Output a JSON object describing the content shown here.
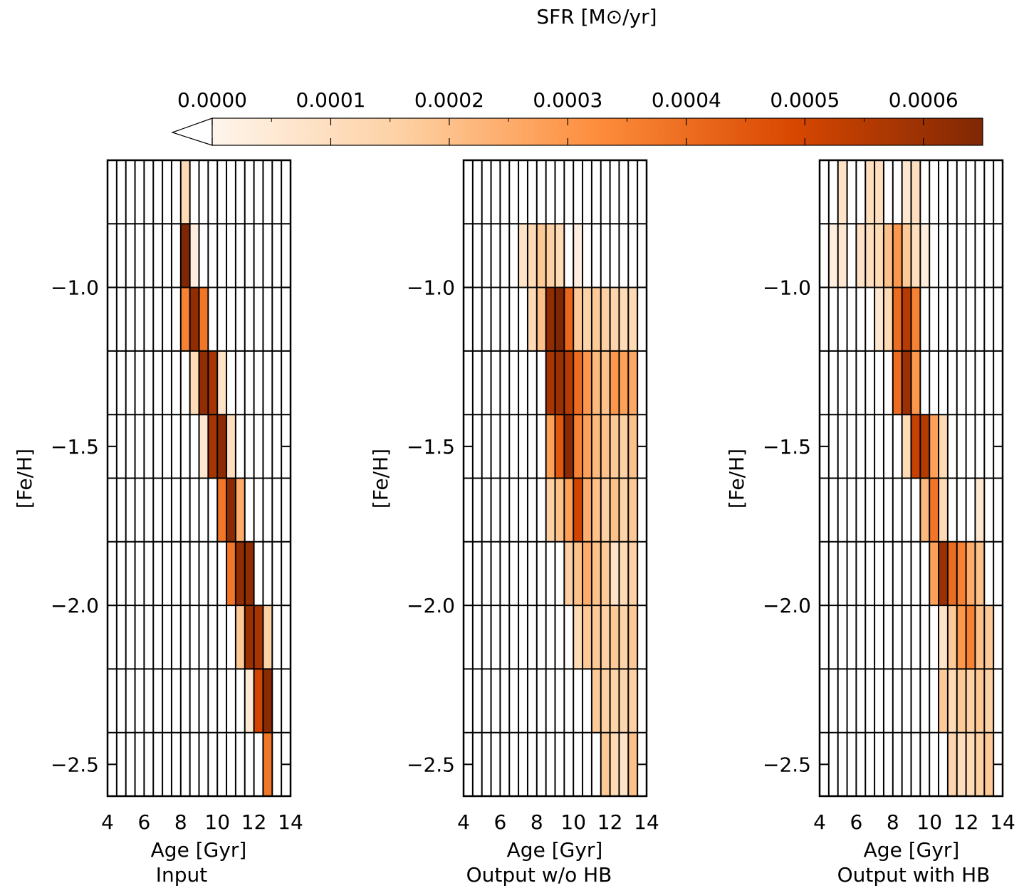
{
  "colorbar": {
    "title": "SFR [M⊙/yr]",
    "ticks": [
      {
        "label": "0.0000",
        "value": 0.0
      },
      {
        "label": "0.0001",
        "value": 0.0001
      },
      {
        "label": "0.0002",
        "value": 0.0002
      },
      {
        "label": "0.0003",
        "value": 0.0003
      },
      {
        "label": "0.0004",
        "value": 0.0004
      },
      {
        "label": "0.0005",
        "value": 0.0005
      },
      {
        "label": "0.0006",
        "value": 0.0006
      }
    ],
    "range": [
      0.0,
      0.00065
    ],
    "colors": [
      "#fff5eb",
      "#fdd0a2",
      "#fd8d3c",
      "#d94801",
      "#7f2704"
    ]
  },
  "chart_data": [
    {
      "type": "heatmap",
      "title": "Input",
      "xlabel": "Age [Gyr]",
      "ylabel": "[Fe/H]",
      "xlim": [
        4,
        14
      ],
      "ylim": [
        -2.6,
        -0.6
      ],
      "xticks": [
        "4",
        "6",
        "8",
        "10",
        "12",
        "14"
      ],
      "yticks": [
        "−1.0",
        "−1.5",
        "−2.0",
        "−2.5"
      ],
      "age_bin_width": 0.5,
      "feh_bin_edges": [
        -0.6,
        -0.8,
        -1.0,
        -1.2,
        -1.4,
        -1.6,
        -1.8,
        -2.0,
        -2.2,
        -2.4,
        -2.6
      ],
      "cells": [
        [
          [
            8.0,
            0.00012
          ]
        ],
        [
          [
            8.0,
            0.00065
          ],
          [
            8.5,
            3e-05
          ]
        ],
        [
          [
            8.0,
            0.00035
          ],
          [
            8.5,
            0.00062
          ],
          [
            9.0,
            0.00038
          ]
        ],
        [
          [
            8.5,
            0.00012
          ],
          [
            9.0,
            0.00062
          ],
          [
            9.5,
            0.00058
          ],
          [
            10.0,
            8e-05
          ]
        ],
        [
          [
            9.0,
            6e-05
          ],
          [
            9.5,
            0.00058
          ],
          [
            10.0,
            0.00063
          ],
          [
            10.5,
            0.0001
          ]
        ],
        [
          [
            10.0,
            0.00038
          ],
          [
            10.5,
            0.00063
          ],
          [
            11.0,
            0.00025
          ]
        ],
        [
          [
            10.5,
            0.00038
          ],
          [
            11.0,
            0.00062
          ],
          [
            11.5,
            0.00062
          ]
        ],
        [
          [
            11.0,
            0.00018
          ],
          [
            11.5,
            0.0006
          ],
          [
            12.0,
            0.00058
          ],
          [
            12.5,
            0.00016
          ]
        ],
        [
          [
            11.5,
            5e-05
          ],
          [
            12.0,
            0.0005
          ],
          [
            12.5,
            0.00063
          ]
        ],
        [
          [
            12.5,
            0.00038
          ]
        ]
      ]
    },
    {
      "type": "heatmap",
      "title": "Output w/o HB",
      "xlabel": "Age [Gyr]",
      "ylabel": "[Fe/H]",
      "xlim": [
        4,
        14
      ],
      "ylim": [
        -2.6,
        -0.6
      ],
      "xticks": [
        "4",
        "6",
        "8",
        "10",
        "12",
        "14"
      ],
      "yticks": [
        "−1.0",
        "−1.5",
        "−2.0",
        "−2.5"
      ],
      "age_bin_width": 0.5,
      "feh_bin_edges": [
        -0.6,
        -0.8,
        -1.0,
        -1.2,
        -1.4,
        -1.6,
        -1.8,
        -2.0,
        -2.2,
        -2.4,
        -2.6
      ],
      "cells": [
        [],
        [
          [
            7.0,
            8e-05
          ],
          [
            7.5,
            0.00012
          ],
          [
            8.0,
            0.00018
          ],
          [
            8.5,
            0.00016
          ],
          [
            9.0,
            0.00012
          ],
          [
            10.0,
            3e-05
          ]
        ],
        [
          [
            7.5,
            0.00012
          ],
          [
            8.0,
            0.0002
          ],
          [
            8.5,
            0.00062
          ],
          [
            9.0,
            0.00065
          ],
          [
            9.5,
            0.00042
          ],
          [
            10.0,
            0.00018
          ],
          [
            10.5,
            0.00015
          ],
          [
            11.0,
            0.00018
          ],
          [
            11.5,
            0.00016
          ],
          [
            12.0,
            0.00014
          ],
          [
            12.5,
            0.00012
          ],
          [
            13.0,
            0.00012
          ]
        ],
        [
          [
            8.5,
            0.00058
          ],
          [
            9.0,
            0.0006
          ],
          [
            9.5,
            0.00055
          ],
          [
            10.0,
            0.0004
          ],
          [
            10.5,
            0.0003
          ],
          [
            11.0,
            0.00022
          ],
          [
            11.5,
            0.0002
          ],
          [
            12.0,
            0.0003
          ],
          [
            12.5,
            0.00028
          ],
          [
            13.0,
            0.00026
          ]
        ],
        [
          [
            8.5,
            0.00028
          ],
          [
            9.0,
            0.00045
          ],
          [
            9.5,
            0.00063
          ],
          [
            10.0,
            0.00035
          ],
          [
            10.5,
            0.00028
          ],
          [
            11.0,
            0.00022
          ],
          [
            11.5,
            0.0002
          ],
          [
            12.0,
            0.00018
          ],
          [
            12.5,
            0.00016
          ],
          [
            13.0,
            0.0002
          ]
        ],
        [
          [
            8.5,
            0.00016
          ],
          [
            9.0,
            0.0002
          ],
          [
            9.5,
            0.00028
          ],
          [
            10.0,
            0.0005
          ],
          [
            10.5,
            0.00025
          ],
          [
            11.0,
            0.0002
          ],
          [
            11.5,
            0.00016
          ],
          [
            12.0,
            0.0002
          ],
          [
            12.5,
            0.00015
          ],
          [
            13.0,
            0.00018
          ]
        ],
        [
          [
            9.5,
            0.00016
          ],
          [
            10.0,
            0.0002
          ],
          [
            10.5,
            0.00025
          ],
          [
            11.0,
            0.0002
          ],
          [
            11.5,
            0.00018
          ],
          [
            12.0,
            8e-05
          ],
          [
            12.5,
            0.00012
          ],
          [
            13.0,
            0.00016
          ]
        ],
        [
          [
            10.0,
            0.00012
          ],
          [
            10.5,
            0.00018
          ],
          [
            11.0,
            0.00018
          ],
          [
            11.5,
            0.00016
          ],
          [
            12.0,
            0.00018
          ],
          [
            12.5,
            0.00015
          ],
          [
            13.0,
            0.00018
          ]
        ],
        [
          [
            11.0,
            0.00018
          ],
          [
            11.5,
            0.00016
          ],
          [
            12.0,
            0.00015
          ],
          [
            12.5,
            0.00014
          ],
          [
            13.0,
            0.00016
          ]
        ],
        [
          [
            11.5,
            0.00018
          ],
          [
            12.0,
            0.00012
          ],
          [
            12.5,
            8e-05
          ],
          [
            13.0,
            0.0002
          ]
        ]
      ]
    },
    {
      "type": "heatmap",
      "title": "Output with HB",
      "xlabel": "Age [Gyr]",
      "ylabel": "[Fe/H]",
      "xlim": [
        4,
        14
      ],
      "ylim": [
        -2.6,
        -0.6
      ],
      "xticks": [
        "4",
        "6",
        "8",
        "10",
        "12",
        "14"
      ],
      "yticks": [
        "−1.0",
        "−1.5",
        "−2.0",
        "−2.5"
      ],
      "age_bin_width": 0.5,
      "feh_bin_edges": [
        -0.6,
        -0.8,
        -1.0,
        -1.2,
        -1.4,
        -1.6,
        -1.8,
        -2.0,
        -2.2,
        -2.4,
        -2.6
      ],
      "cells": [
        [
          [
            5.0,
            8e-05
          ],
          [
            6.5,
            0.0001
          ],
          [
            7.0,
            0.0001
          ],
          [
            8.5,
            6e-05
          ],
          [
            9.0,
            0.0001
          ]
        ],
        [
          [
            4.5,
            3e-05
          ],
          [
            5.0,
            6e-05
          ],
          [
            6.0,
            8e-05
          ],
          [
            6.5,
            0.0001
          ],
          [
            7.0,
            0.00012
          ],
          [
            7.5,
            0.0002
          ],
          [
            8.0,
            0.0003
          ],
          [
            8.5,
            0.00018
          ],
          [
            9.0,
            0.0001
          ],
          [
            9.5,
            3e-05
          ]
        ],
        [
          [
            7.0,
            6e-05
          ],
          [
            7.5,
            0.00012
          ],
          [
            8.0,
            0.0004
          ],
          [
            8.5,
            0.00055
          ],
          [
            9.0,
            0.00035
          ]
        ],
        [
          [
            8.0,
            0.0004
          ],
          [
            8.5,
            0.0006
          ],
          [
            9.0,
            0.0003
          ]
        ],
        [
          [
            8.5,
            0.00012
          ],
          [
            9.0,
            0.00052
          ],
          [
            9.5,
            0.00055
          ],
          [
            10.0,
            0.00028
          ],
          [
            10.5,
            0.00012
          ]
        ],
        [
          [
            9.5,
            0.00022
          ],
          [
            10.0,
            0.00038
          ],
          [
            10.5,
            0.00012
          ],
          [
            12.5,
            6e-05
          ]
        ],
        [
          [
            10.0,
            0.00028
          ],
          [
            10.5,
            0.0006
          ],
          [
            11.0,
            0.0004
          ],
          [
            11.5,
            0.00035
          ],
          [
            12.0,
            0.00025
          ],
          [
            12.5,
            0.0002
          ]
        ],
        [
          [
            10.5,
            8e-05
          ],
          [
            11.0,
            0.00018
          ],
          [
            11.5,
            0.0003
          ],
          [
            12.0,
            0.00035
          ],
          [
            12.5,
            0.0002
          ],
          [
            13.0,
            0.00018
          ]
        ],
        [
          [
            10.5,
            0.00018
          ],
          [
            11.0,
            0.00012
          ],
          [
            11.5,
            0.00018
          ],
          [
            12.0,
            0.00016
          ],
          [
            12.5,
            0.00018
          ],
          [
            13.0,
            0.00016
          ]
        ],
        [
          [
            11.0,
            0.00014
          ],
          [
            11.5,
            0.0001
          ],
          [
            12.0,
            0.00012
          ],
          [
            12.5,
            0.00016
          ],
          [
            13.0,
            0.00018
          ]
        ]
      ]
    }
  ]
}
